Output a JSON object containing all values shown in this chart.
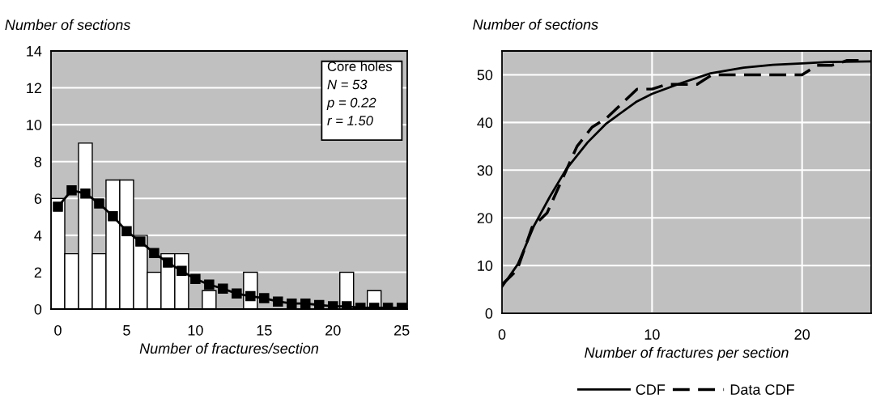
{
  "chart_data": [
    {
      "type": "bar",
      "ylabel": "Number of sections",
      "xlabel": "Number of fractures/section",
      "x": [
        0,
        1,
        2,
        3,
        4,
        5,
        6,
        7,
        8,
        9,
        10,
        11,
        12,
        13,
        14,
        15,
        16,
        17,
        18,
        19,
        20,
        21,
        22,
        23,
        24,
        25
      ],
      "series": [
        {
          "type": "bar",
          "color": "#ffffff",
          "values": [
            6,
            3,
            9,
            3,
            7,
            7,
            4,
            2,
            3,
            3,
            0,
            1,
            0,
            0,
            2,
            0,
            0,
            0,
            0,
            0,
            0,
            2,
            0,
            1,
            0,
            0
          ]
        },
        {
          "type": "line",
          "color": "#000000",
          "marker": "square",
          "values": [
            5.55,
            6.44,
            6.27,
            5.73,
            5.04,
            4.22,
            3.66,
            3.04,
            2.52,
            2.07,
            1.63,
            1.33,
            1.11,
            0.84,
            0.7,
            0.59,
            0.41,
            0.3,
            0.3,
            0.22,
            0.15,
            0.15,
            0.07,
            0.07,
            0.07,
            0.07
          ]
        }
      ],
      "xlim": [
        -0.5,
        25.4
      ],
      "xticks": [
        0,
        5,
        10,
        15,
        20,
        25
      ],
      "ylim": [
        0,
        14
      ],
      "yticks": [
        0,
        2,
        4,
        6,
        8,
        10,
        12,
        14
      ],
      "grid": "y",
      "annotations": [
        "Core holes",
        "N = 53",
        "p = 0.22",
        "r = 1.50"
      ]
    },
    {
      "type": "line",
      "ylabel": "Number of sections",
      "xlabel": "Number of fractures per section",
      "series": [
        {
          "name": "CDF",
          "color": "#000000",
          "line_style": "solid",
          "x": [
            0,
            1.06,
            2.13,
            3.2,
            4.28,
            5.7,
            6.96,
            8.93,
            10,
            11.97,
            13.9,
            16.1,
            18.05,
            20,
            21.8,
            24.6
          ],
          "values": [
            5.5,
            10.3,
            18.3,
            24.5,
            30.2,
            35.8,
            39.8,
            44.3,
            46,
            48.3,
            50.3,
            51.5,
            52.1,
            52.4,
            52.7,
            52.8
          ]
        },
        {
          "name": "Data CDF",
          "color": "#000000",
          "line_style": "dashed",
          "x": [
            0,
            1,
            2,
            3,
            4,
            5,
            6,
            7,
            8,
            9,
            10,
            11,
            12,
            13,
            14,
            15,
            16,
            17,
            18,
            19,
            20,
            21,
            22,
            23,
            24
          ],
          "values": [
            6,
            9,
            18,
            21,
            28,
            35,
            39,
            41,
            44,
            47,
            47,
            48,
            48,
            48,
            50,
            50,
            50,
            50,
            50,
            50,
            50,
            52,
            52,
            53,
            53
          ]
        }
      ],
      "xlim": [
        0,
        24.6
      ],
      "xticks": [
        0,
        10,
        20
      ],
      "ylim": [
        0,
        55
      ],
      "yticks": [
        0,
        10,
        20,
        30,
        40,
        50
      ],
      "grid": true,
      "legend": "bottom"
    }
  ]
}
